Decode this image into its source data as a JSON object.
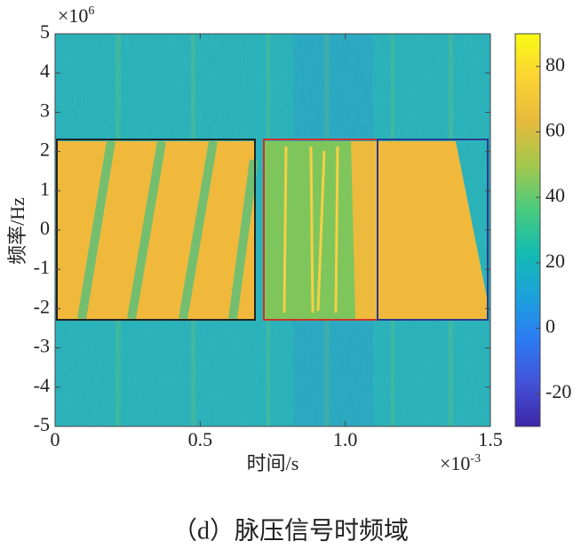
{
  "chart_data": {
    "type": "spectrogram",
    "caption": "（d）脉压信号时频域",
    "x_label": "时间/s",
    "y_label": "频率/Hz",
    "x_multiplier": {
      "base": "×10",
      "exponent": "-3"
    },
    "y_multiplier": {
      "base": "×10",
      "exponent": "6"
    },
    "xlim": [
      0,
      1.5
    ],
    "xticks": [
      0,
      0.5,
      {
        "value": 1,
        "label": "1.0"
      },
      1.5
    ],
    "ylim": [
      -5,
      5
    ],
    "yticks": [
      -5,
      -4,
      -3,
      -2,
      -1,
      0,
      1,
      2,
      3,
      4,
      5
    ],
    "clim": [
      -30,
      90
    ],
    "cticks": [
      -20,
      0,
      20,
      40,
      60,
      80
    ],
    "colormap": [
      "#3e26a8",
      "#4352d8",
      "#2c7cf5",
      "#1ca2da",
      "#13bcb0",
      "#4ccb7c",
      "#a5c84c",
      "#e7ba3c",
      "#fcd333",
      "#f9fb15"
    ]
  }
}
